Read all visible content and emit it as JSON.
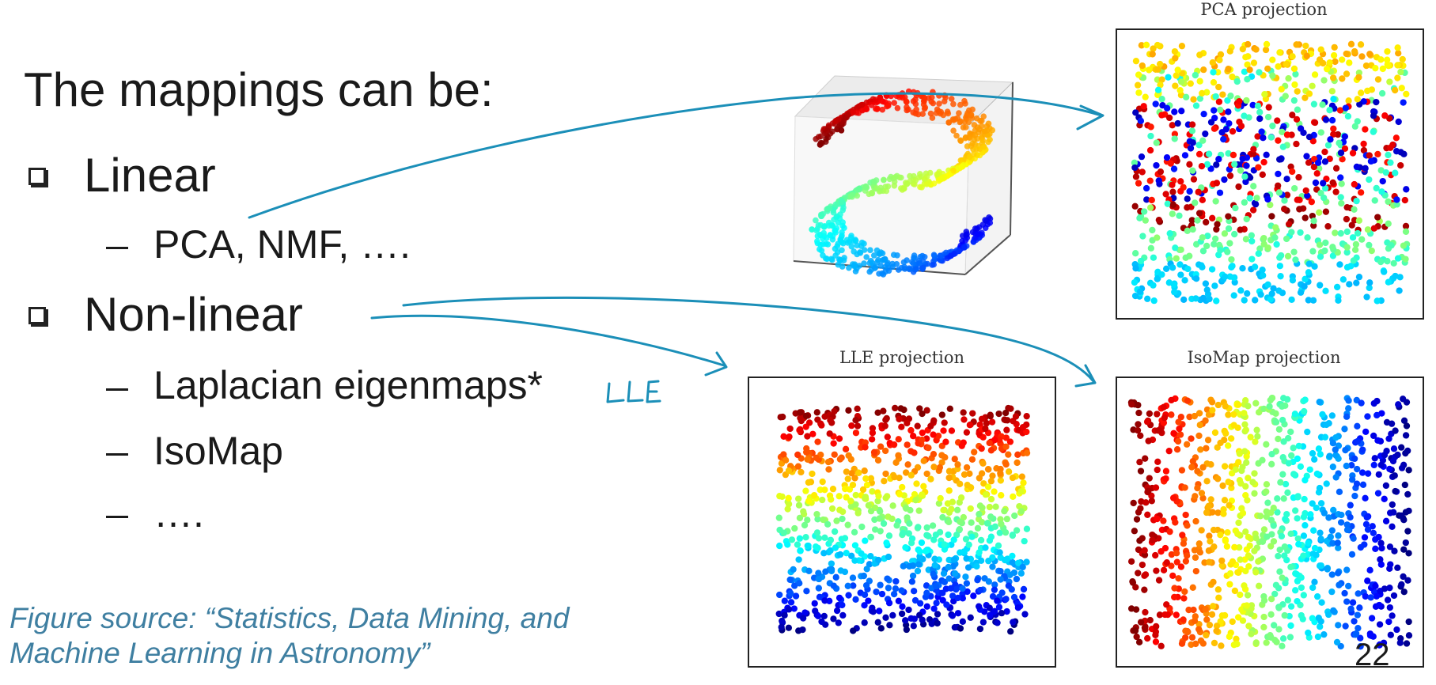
{
  "slide": {
    "intro": "The mappings can be:",
    "bullets": [
      {
        "label": "Linear",
        "sub": [
          "PCA, NMF, …."
        ]
      },
      {
        "label": "Non-linear",
        "sub": [
          "Laplacian eigenmaps*",
          "IsoMap",
          "…."
        ]
      }
    ],
    "handwritten_note": "LLE",
    "caption": [
      "Figure source: “Statistics, Data Mining, and",
      "Machine Learning in Astronomy”"
    ],
    "page_number": "22"
  },
  "figures": {
    "pca_title": "PCA projection",
    "lle_title": "LLE projection",
    "isomap_title": "IsoMap projection",
    "colormap": "jet"
  },
  "colors": {
    "annotation_ink": "#1b8fb8",
    "caption": "#3f7fa1",
    "text": "#1a1a1a"
  }
}
